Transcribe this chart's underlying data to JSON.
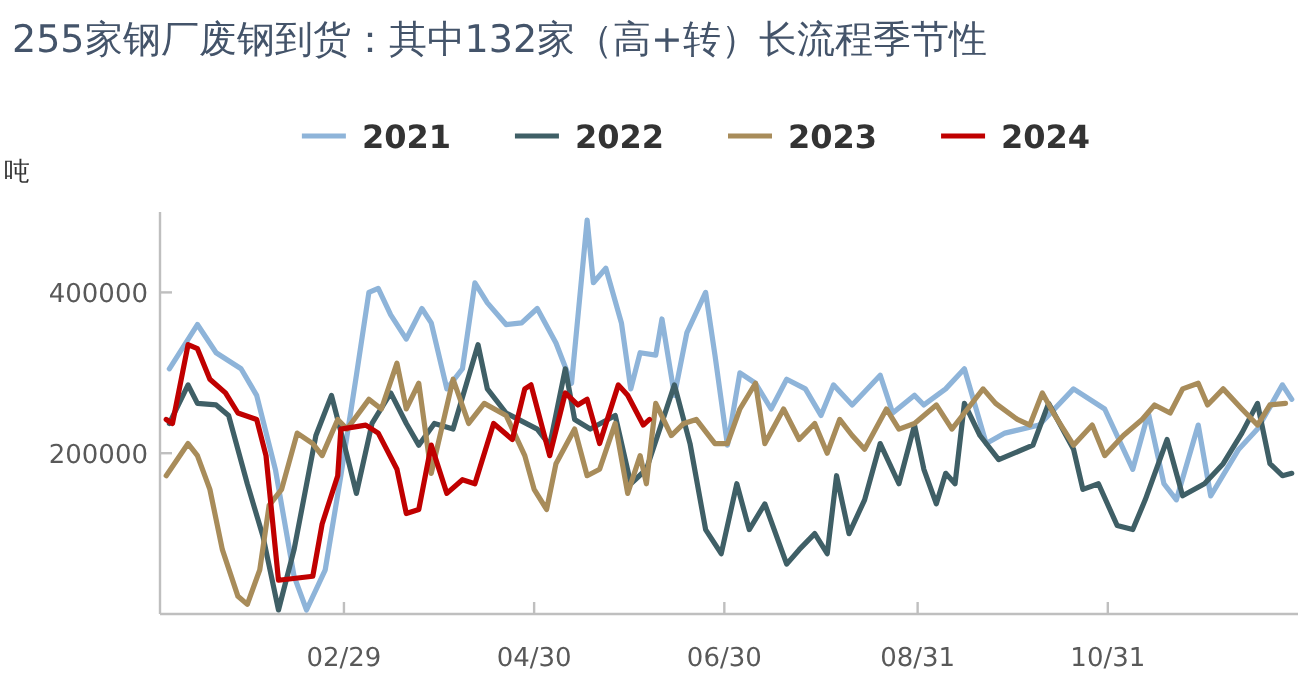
{
  "chart_data": {
    "type": "line",
    "title": "255家钢厂废钢到货：其中132家（高+转）长流程季节性",
    "ylabel": "吨",
    "legend": "top",
    "xlim": [
      "--01-01",
      "--12-31"
    ],
    "xticks": [
      {
        "value": "--02-29",
        "label": "02/29"
      },
      {
        "value": "--04-30",
        "label": "04/30"
      },
      {
        "value": "--06-30",
        "label": "06/30"
      },
      {
        "value": "--08-31",
        "label": "08/31"
      },
      {
        "value": "--10-31",
        "label": "10/31"
      }
    ],
    "ylim": [
      0,
      500000
    ],
    "yticks": [
      200000,
      400000
    ],
    "series": [
      {
        "name": "2021",
        "color": "#8eb4d9",
        "x": [
          "--01-04",
          "--01-13",
          "--01-19",
          "--01-27",
          "--02-01",
          "--02-07",
          "--02-13",
          "--02-17",
          "--02-23",
          "--02-28",
          "--03-04",
          "--03-08",
          "--03-11",
          "--03-15",
          "--03-20",
          "--03-25",
          "--03-28",
          "--04-02",
          "--04-07",
          "--04-11",
          "--04-15",
          "--04-21",
          "--04-26",
          "--05-01",
          "--05-07",
          "--05-12",
          "--05-17",
          "--05-19",
          "--05-23",
          "--05-28",
          "--05-31",
          "--06-03",
          "--06-08",
          "--06-10",
          "--06-14",
          "--06-18",
          "--06-24",
          "--06-27",
          "--07-01",
          "--07-05",
          "--07-10",
          "--07-15",
          "--07-20",
          "--07-26",
          "--07-31",
          "--08-04",
          "--08-10",
          "--08-19",
          "--08-23",
          "--08-30",
          "--09-02",
          "--09-09",
          "--09-15",
          "--09-22",
          "--09-28",
          "--10-09",
          "--10-20",
          "--10-30",
          "--11-08",
          "--11-13",
          "--11-18",
          "--11-22",
          "--11-29",
          "--12-03",
          "--12-12",
          "--12-18",
          "--12-26",
          "--12-29"
        ],
        "values": [
          305000,
          360000,
          325000,
          305000,
          272000,
          180000,
          47000,
          5000,
          55000,
          172000,
          297000,
          400000,
          405000,
          372000,
          342000,
          380000,
          362000,
          280000,
          305000,
          412000,
          387000,
          360000,
          362000,
          380000,
          337000,
          287000,
          490000,
          412000,
          430000,
          362000,
          280000,
          325000,
          322000,
          367000,
          272000,
          350000,
          400000,
          322000,
          210000,
          300000,
          287000,
          255000,
          292000,
          280000,
          247000,
          285000,
          260000,
          297000,
          250000,
          272000,
          260000,
          280000,
          305000,
          212000,
          225000,
          235000,
          280000,
          255000,
          180000,
          250000,
          162000,
          142000,
          235000,
          147000,
          205000,
          230000,
          285000,
          267000
        ]
      },
      {
        "name": "2022",
        "color": "#3f5f66",
        "x": [
          "--01-04",
          "--01-10",
          "--01-13",
          "--01-19",
          "--01-23",
          "--01-29",
          "--02-03",
          "--02-08",
          "--02-13",
          "--02-20",
          "--02-25",
          "--03-01",
          "--03-04",
          "--03-09",
          "--03-15",
          "--03-20",
          "--03-24",
          "--03-29",
          "--04-04",
          "--04-12",
          "--04-15",
          "--04-21",
          "--05-01",
          "--05-05",
          "--05-10",
          "--05-13",
          "--05-18",
          "--05-26",
          "--05-31",
          "--06-05",
          "--06-14",
          "--06-19",
          "--06-24",
          "--06-29",
          "--07-04",
          "--07-08",
          "--07-13",
          "--07-20",
          "--07-24",
          "--07-29",
          "--08-02",
          "--08-05",
          "--08-09",
          "--08-14",
          "--08-19",
          "--08-25",
          "--08-30",
          "--09-02",
          "--09-06",
          "--09-09",
          "--09-12",
          "--09-15",
          "--09-20",
          "--09-26",
          "--10-07",
          "--10-12",
          "--10-20",
          "--10-23",
          "--10-28",
          "--11-03",
          "--11-08",
          "--11-12",
          "--11-19",
          "--11-24",
          "--12-01",
          "--12-07",
          "--12-13",
          "--12-18",
          "--12-22",
          "--12-26",
          "--12-29"
        ],
        "values": [
          237000,
          285000,
          262000,
          260000,
          247000,
          162000,
          97000,
          5000,
          80000,
          222000,
          272000,
          197000,
          150000,
          237000,
          275000,
          237000,
          210000,
          237000,
          230000,
          335000,
          280000,
          250000,
          230000,
          210000,
          305000,
          242000,
          230000,
          247000,
          162000,
          180000,
          285000,
          212000,
          105000,
          75000,
          162000,
          105000,
          137000,
          62000,
          80000,
          100000,
          75000,
          172000,
          100000,
          142000,
          212000,
          162000,
          235000,
          180000,
          137000,
          175000,
          162000,
          262000,
          222000,
          192000,
          210000,
          262000,
          205000,
          155000,
          162000,
          110000,
          105000,
          142000,
          217000,
          147000,
          162000,
          187000,
          225000,
          262000,
          187000,
          172000,
          175000
        ]
      },
      {
        "name": "2023",
        "color": "#a88c5a",
        "x": [
          "--01-03",
          "--01-10",
          "--01-13",
          "--01-17",
          "--01-21",
          "--01-26",
          "--01-29",
          "--02-02",
          "--02-05",
          "--02-09",
          "--02-14",
          "--02-19",
          "--02-22",
          "--02-27",
          "--03-01",
          "--03-08",
          "--03-12",
          "--03-17",
          "--03-20",
          "--03-24",
          "--03-28",
          "--04-04",
          "--04-09",
          "--04-14",
          "--04-21",
          "--04-27",
          "--04-30",
          "--05-04",
          "--05-07",
          "--05-13",
          "--05-17",
          "--05-21",
          "--05-26",
          "--05-30",
          "--06-03",
          "--06-05",
          "--06-08",
          "--06-13",
          "--06-17",
          "--06-21",
          "--06-27",
          "--07-01",
          "--07-05",
          "--07-10",
          "--07-13",
          "--07-19",
          "--07-24",
          "--07-29",
          "--08-02",
          "--08-06",
          "--08-10",
          "--08-14",
          "--08-21",
          "--08-25",
          "--08-30",
          "--09-06",
          "--09-11",
          "--09-16",
          "--09-21",
          "--09-25",
          "--10-02",
          "--10-06",
          "--10-10",
          "--10-14",
          "--10-20",
          "--10-26",
          "--10-30",
          "--11-05",
          "--11-11",
          "--11-15",
          "--11-20",
          "--11-24",
          "--11-29",
          "--12-02",
          "--12-07",
          "--12-13",
          "--12-18",
          "--12-22",
          "--12-27"
        ],
        "values": [
          172000,
          212000,
          197000,
          155000,
          80000,
          22000,
          12000,
          55000,
          135000,
          155000,
          225000,
          212000,
          197000,
          242000,
          230000,
          267000,
          255000,
          312000,
          255000,
          287000,
          175000,
          292000,
          237000,
          262000,
          247000,
          197000,
          155000,
          130000,
          187000,
          230000,
          172000,
          180000,
          237000,
          150000,
          197000,
          162000,
          262000,
          222000,
          237000,
          242000,
          212000,
          212000,
          255000,
          287000,
          212000,
          255000,
          217000,
          237000,
          200000,
          242000,
          222000,
          205000,
          255000,
          230000,
          237000,
          260000,
          230000,
          255000,
          280000,
          262000,
          242000,
          235000,
          275000,
          247000,
          210000,
          235000,
          197000,
          222000,
          242000,
          260000,
          250000,
          280000,
          287000,
          260000,
          280000,
          255000,
          235000,
          260000,
          262000
        ]
      },
      {
        "name": "2024",
        "color": "#c00000",
        "x": [
          "--01-03",
          "--01-05",
          "--01-10",
          "--01-13",
          "--01-17",
          "--01-22",
          "--01-26",
          "--02-01",
          "--02-04",
          "--02-08",
          "--02-19",
          "--02-22",
          "--02-27",
          "--02-28",
          "--03-07",
          "--03-11",
          "--03-17",
          "--03-20",
          "--03-24",
          "--03-28",
          "--04-02",
          "--04-07",
          "--04-11",
          "--04-17",
          "--04-23",
          "--04-27",
          "--04-29",
          "--05-05",
          "--05-10",
          "--05-14",
          "--05-17",
          "--05-21",
          "--05-27",
          "--05-30",
          "--06-04",
          "--06-06"
        ],
        "values": [
          242000,
          237000,
          335000,
          330000,
          292000,
          275000,
          250000,
          242000,
          197000,
          42000,
          47000,
          112000,
          172000,
          230000,
          235000,
          225000,
          180000,
          125000,
          130000,
          210000,
          150000,
          167000,
          162000,
          237000,
          217000,
          280000,
          285000,
          197000,
          275000,
          260000,
          267000,
          212000,
          285000,
          272000,
          235000,
          242000
        ]
      }
    ]
  }
}
